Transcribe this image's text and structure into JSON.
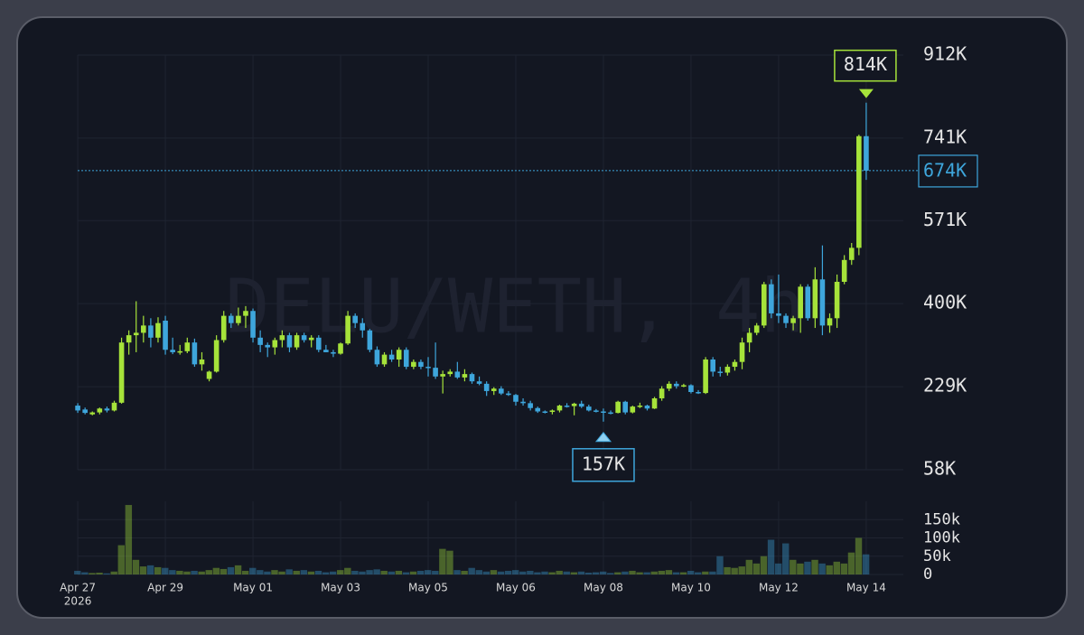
{
  "chart_data": {
    "type": "candlestick",
    "watermark": "DELU/WETH, 4h",
    "ohlc": [
      [
        190,
        195,
        175,
        180
      ],
      [
        182,
        186,
        172,
        175
      ],
      [
        172,
        178,
        170,
        176
      ],
      [
        176,
        186,
        172,
        184
      ],
      [
        184,
        188,
        176,
        180
      ],
      [
        180,
        200,
        178,
        196
      ],
      [
        196,
        330,
        194,
        320
      ],
      [
        320,
        345,
        295,
        335
      ],
      [
        335,
        405,
        300,
        340
      ],
      [
        340,
        375,
        320,
        355
      ],
      [
        355,
        370,
        310,
        330
      ],
      [
        330,
        372,
        320,
        360
      ],
      [
        365,
        375,
        295,
        305
      ],
      [
        305,
        330,
        296,
        300
      ],
      [
        300,
        315,
        295,
        302
      ],
      [
        302,
        330,
        298,
        320
      ],
      [
        320,
        328,
        270,
        275
      ],
      [
        275,
        300,
        262,
        285
      ],
      [
        245,
        262,
        240,
        260
      ],
      [
        260,
        335,
        258,
        325
      ],
      [
        325,
        385,
        320,
        375
      ],
      [
        375,
        380,
        350,
        360
      ],
      [
        360,
        392,
        355,
        375
      ],
      [
        375,
        395,
        350,
        385
      ],
      [
        385,
        390,
        320,
        330
      ],
      [
        330,
        345,
        300,
        315
      ],
      [
        315,
        320,
        290,
        310
      ],
      [
        310,
        330,
        295,
        325
      ],
      [
        325,
        345,
        310,
        335
      ],
      [
        335,
        340,
        300,
        310
      ],
      [
        310,
        340,
        305,
        335
      ],
      [
        335,
        340,
        320,
        325
      ],
      [
        325,
        335,
        310,
        330
      ],
      [
        330,
        335,
        300,
        305
      ],
      [
        305,
        315,
        300,
        300
      ],
      [
        300,
        305,
        290,
        297
      ],
      [
        297,
        320,
        295,
        318
      ],
      [
        318,
        385,
        315,
        375
      ],
      [
        375,
        380,
        350,
        360
      ],
      [
        360,
        370,
        330,
        345
      ],
      [
        345,
        348,
        300,
        305
      ],
      [
        305,
        312,
        270,
        275
      ],
      [
        275,
        300,
        270,
        295
      ],
      [
        295,
        305,
        280,
        285
      ],
      [
        285,
        310,
        270,
        305
      ],
      [
        305,
        310,
        265,
        270
      ],
      [
        270,
        285,
        265,
        280
      ],
      [
        280,
        285,
        265,
        270
      ],
      [
        270,
        290,
        250,
        268
      ],
      [
        268,
        320,
        245,
        250
      ],
      [
        250,
        262,
        215,
        255
      ],
      [
        255,
        265,
        250,
        260
      ],
      [
        260,
        280,
        245,
        248
      ],
      [
        248,
        265,
        240,
        255
      ],
      [
        255,
        258,
        235,
        240
      ],
      [
        240,
        250,
        232,
        235
      ],
      [
        235,
        240,
        210,
        220
      ],
      [
        220,
        228,
        212,
        225
      ],
      [
        225,
        230,
        212,
        215
      ],
      [
        215,
        220,
        210,
        212
      ],
      [
        212,
        214,
        190,
        198
      ],
      [
        198,
        205,
        190,
        195
      ],
      [
        195,
        200,
        180,
        185
      ],
      [
        185,
        188,
        175,
        178
      ],
      [
        178,
        180,
        174,
        177
      ],
      [
        177,
        182,
        172,
        180
      ],
      [
        180,
        192,
        176,
        190
      ],
      [
        190,
        195,
        186,
        189
      ],
      [
        189,
        196,
        170,
        194
      ],
      [
        194,
        200,
        185,
        188
      ],
      [
        188,
        192,
        178,
        180
      ],
      [
        180,
        183,
        176,
        178
      ],
      [
        178,
        184,
        157,
        176
      ],
      [
        176,
        180,
        172,
        175
      ],
      [
        175,
        200,
        174,
        198
      ],
      [
        198,
        200,
        172,
        176
      ],
      [
        176,
        190,
        174,
        188
      ],
      [
        188,
        196,
        185,
        190
      ],
      [
        190,
        192,
        180,
        184
      ],
      [
        184,
        208,
        183,
        205
      ],
      [
        205,
        230,
        200,
        225
      ],
      [
        225,
        240,
        220,
        235
      ],
      [
        235,
        240,
        225,
        230
      ],
      [
        230,
        235,
        228,
        232
      ],
      [
        232,
        234,
        215,
        218
      ],
      [
        218,
        222,
        214,
        216
      ],
      [
        216,
        290,
        214,
        285
      ],
      [
        285,
        290,
        250,
        260
      ],
      [
        260,
        270,
        250,
        258
      ],
      [
        258,
        275,
        252,
        270
      ],
      [
        270,
        285,
        262,
        280
      ],
      [
        280,
        330,
        265,
        320
      ],
      [
        320,
        350,
        300,
        340
      ],
      [
        340,
        360,
        335,
        355
      ],
      [
        355,
        445,
        350,
        440
      ],
      [
        440,
        450,
        370,
        380
      ],
      [
        380,
        460,
        360,
        375
      ],
      [
        375,
        380,
        350,
        360
      ],
      [
        360,
        375,
        345,
        370
      ],
      [
        370,
        440,
        340,
        435
      ],
      [
        435,
        440,
        365,
        370
      ],
      [
        370,
        475,
        350,
        450
      ],
      [
        450,
        520,
        335,
        355
      ],
      [
        355,
        380,
        340,
        370
      ],
      [
        370,
        460,
        350,
        445
      ],
      [
        445,
        500,
        440,
        490
      ],
      [
        490,
        525,
        480,
        515
      ],
      [
        515,
        748,
        500,
        745
      ],
      [
        745,
        814,
        655,
        674
      ]
    ],
    "volume": [
      10,
      6,
      4,
      5,
      3,
      8,
      80,
      190,
      40,
      22,
      25,
      20,
      18,
      12,
      10,
      8,
      10,
      8,
      12,
      18,
      15,
      20,
      25,
      10,
      18,
      12,
      8,
      12,
      8,
      14,
      10,
      12,
      8,
      10,
      6,
      8,
      12,
      18,
      10,
      8,
      12,
      14,
      10,
      8,
      10,
      6,
      8,
      10,
      12,
      10,
      70,
      65,
      12,
      10,
      18,
      12,
      8,
      12,
      8,
      10,
      12,
      8,
      10,
      6,
      8,
      6,
      10,
      8,
      6,
      8,
      5,
      6,
      8,
      4,
      6,
      8,
      10,
      6,
      6,
      8,
      10,
      12,
      6,
      6,
      10,
      6,
      8,
      8,
      50,
      20,
      18,
      22,
      40,
      30,
      50,
      95,
      30,
      85,
      40,
      30,
      35,
      40,
      30,
      25,
      35,
      30,
      60,
      100,
      55
    ],
    "up_color": "#a6e33a",
    "down_color": "#3ea6dc",
    "xlim": [
      -1,
      109
    ],
    "xticks": [
      {
        "value": 0,
        "label": "Apr 27"
      },
      {
        "value": 12,
        "label": "Apr 29"
      },
      {
        "value": 24,
        "label": "May 01"
      },
      {
        "value": 36,
        "label": "May 03"
      },
      {
        "value": 48,
        "label": "May 05"
      },
      {
        "value": 60,
        "label": "May 06"
      },
      {
        "value": 72,
        "label": "May 08"
      },
      {
        "value": 84,
        "label": "May 10"
      },
      {
        "value": 96,
        "label": "May 12"
      },
      {
        "value": 108,
        "label": "May 14"
      }
    ],
    "year_label": "2026",
    "ylim": [
      58,
      912
    ],
    "yticks": [
      {
        "value": 58,
        "label": "58K"
      },
      {
        "value": 229,
        "label": "229K"
      },
      {
        "value": 400,
        "label": "400K"
      },
      {
        "value": 571,
        "label": "571K"
      },
      {
        "value": 741,
        "label": "741K"
      },
      {
        "value": 912,
        "label": "912K"
      }
    ],
    "volume_ylim": [
      0,
      200
    ],
    "volume_ticks": [
      0,
      {
        "value": 50,
        "label": "50k"
      },
      {
        "value": 100,
        "label": "100k"
      },
      {
        "value": 150,
        "label": "150k"
      }
    ],
    "high_marker": {
      "value": 814,
      "label": "814K"
    },
    "low_marker": {
      "value": 157,
      "label": "157K"
    },
    "last_price": {
      "value": 674,
      "label": "674K"
    },
    "grid": true
  }
}
